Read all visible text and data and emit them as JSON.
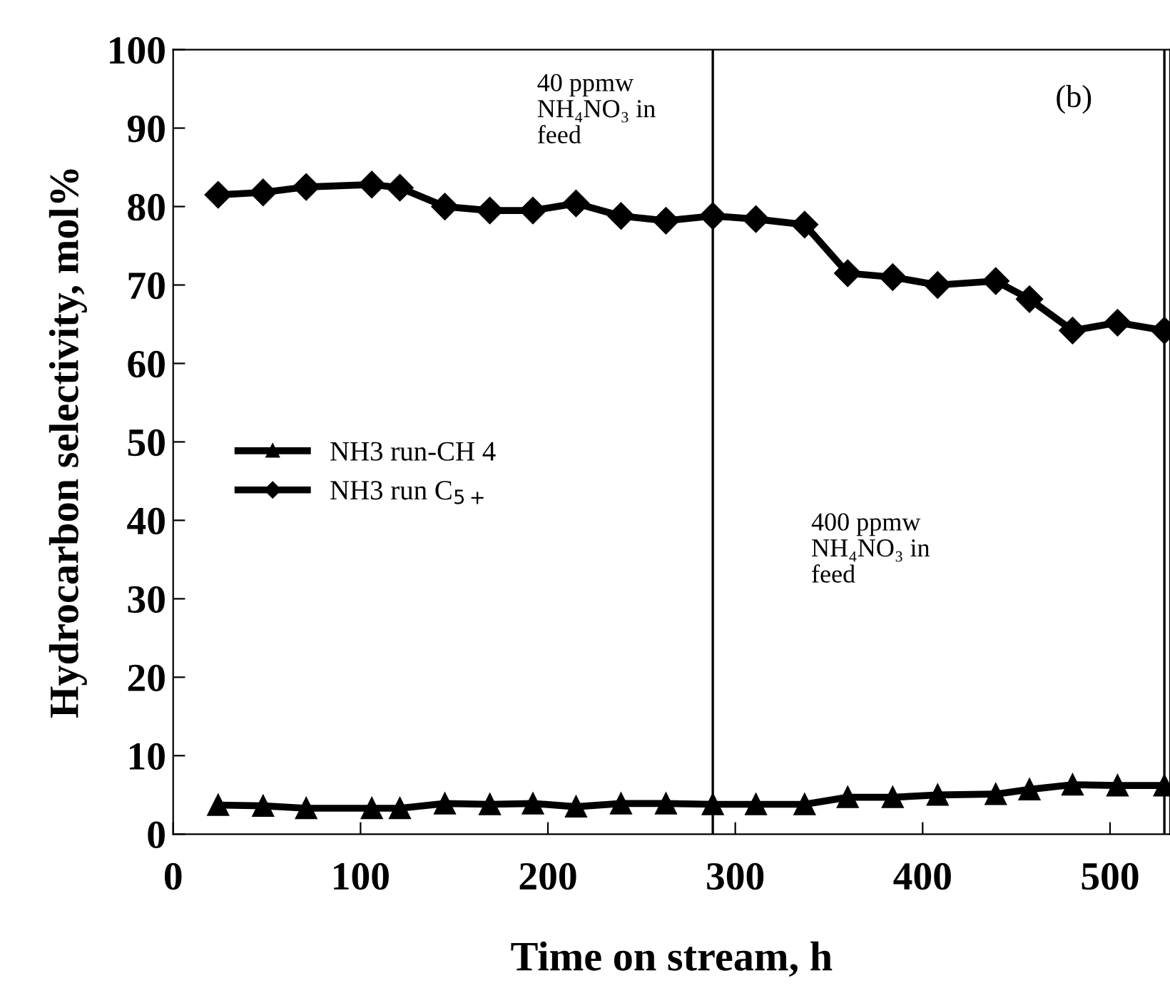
{
  "chart_data": {
    "type": "line",
    "xlabel": "Time on stream, h",
    "ylabel": "Hydrocarbon selectivity, mol%",
    "xlim": [
      0,
      532
    ],
    "xticks": [
      0,
      100,
      200,
      300,
      400,
      500
    ],
    "ylim": [
      0,
      100
    ],
    "yticks": [
      0,
      10,
      20,
      30,
      40,
      50,
      60,
      70,
      80,
      90,
      100
    ],
    "x": [
      24,
      48,
      71,
      106,
      121,
      145,
      169,
      192,
      215,
      239,
      263,
      288,
      311,
      337,
      360,
      384,
      408,
      439,
      457,
      480,
      504,
      529
    ],
    "series": [
      {
        "name": "NH3 run-CH 4",
        "color": "#000000",
        "marker": "triangle",
        "values": [
          3.7,
          3.6,
          3.3,
          3.3,
          3.3,
          3.9,
          3.8,
          3.9,
          3.5,
          3.9,
          3.9,
          3.8,
          3.8,
          3.8,
          4.7,
          4.7,
          5.0,
          5.1,
          5.7,
          6.3,
          6.2,
          6.2
        ]
      },
      {
        "name": "NH3 run C$_{5+}$",
        "color": "#000000",
        "marker": "diamond",
        "values": [
          81.5,
          81.8,
          82.5,
          82.8,
          82.4,
          80,
          79.5,
          79.5,
          80.4,
          78.8,
          78.2,
          78.8,
          78.4,
          77.7,
          71.5,
          71,
          70,
          70.5,
          68.2,
          64.2,
          65.2,
          64.2
        ]
      }
    ],
    "ref_lines": [
      {
        "axis": "x",
        "value": 288,
        "color": "#000000"
      },
      {
        "axis": "x",
        "value": 529,
        "color": "#000000"
      }
    ],
    "annotations": [
      "40 ppmw\nNH₄NO₃ in\nfeed",
      "400 ppmw\nNH₄NO₃ in\nfeed",
      "(b)"
    ],
    "legend": "left",
    "grid": false,
    "line_style": "solid"
  }
}
